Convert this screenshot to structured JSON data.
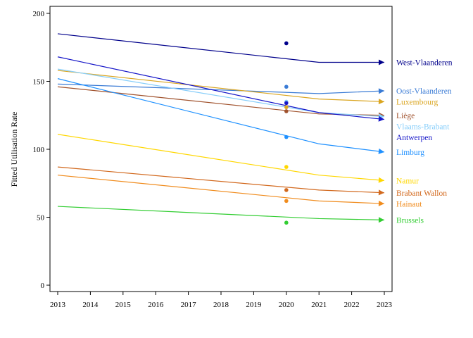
{
  "chart_data": {
    "type": "line",
    "title": "",
    "xlabel": "",
    "ylabel": "Fitted Utilisation Rate",
    "xlim": [
      2013,
      2023
    ],
    "ylim": [
      0,
      200
    ],
    "x_ticks": [
      2013,
      2014,
      2015,
      2016,
      2017,
      2018,
      2019,
      2020,
      2021,
      2022,
      2023
    ],
    "y_ticks": [
      0,
      50,
      100,
      150,
      200
    ],
    "grid": false,
    "legend": "end-of-line labels at right",
    "series": [
      {
        "name": "West-Vlaanderen",
        "color": "#00008B",
        "x": [
          2013,
          2021,
          2023
        ],
        "y": [
          185,
          164,
          164
        ],
        "observed": {
          "x": 2020,
          "y": 178
        }
      },
      {
        "name": "Oost-Vlaanderen",
        "color": "#3A7BD5",
        "x": [
          2013,
          2021,
          2023
        ],
        "y": [
          148,
          141,
          143
        ],
        "observed": {
          "x": 2020,
          "y": 146
        }
      },
      {
        "name": "Luxembourg",
        "color": "#DAA520",
        "x": [
          2013,
          2021,
          2023
        ],
        "y": [
          158,
          137,
          135
        ],
        "observed": {
          "x": 2020,
          "y": 131
        }
      },
      {
        "name": "Liège",
        "color": "#A0522D",
        "x": [
          2013,
          2021,
          2023
        ],
        "y": [
          146,
          126,
          125
        ],
        "observed": {
          "x": 2020,
          "y": 128
        }
      },
      {
        "name": "Vlaams-Brabant",
        "color": "#87CEFA",
        "x": [
          2013,
          2021,
          2023
        ],
        "y": [
          159,
          127,
          124
        ],
        "observed": {
          "x": 2020,
          "y": 135
        }
      },
      {
        "name": "Antwerpen",
        "color": "#1515C8",
        "x": [
          2013,
          2021,
          2023
        ],
        "y": [
          168,
          127,
          122
        ],
        "observed": {
          "x": 2020,
          "y": 134
        }
      },
      {
        "name": "Limburg",
        "color": "#1E90FF",
        "x": [
          2013,
          2021,
          2023
        ],
        "y": [
          152,
          104,
          98
        ],
        "observed": {
          "x": 2020,
          "y": 109
        }
      },
      {
        "name": "Namur",
        "color": "#FFD700",
        "x": [
          2013,
          2021,
          2023
        ],
        "y": [
          111,
          81,
          77
        ],
        "observed": {
          "x": 2020,
          "y": 87
        }
      },
      {
        "name": "Brabant Wallon",
        "color": "#D2691E",
        "x": [
          2013,
          2021,
          2023
        ],
        "y": [
          87,
          70,
          68
        ],
        "observed": {
          "x": 2020,
          "y": 70
        }
      },
      {
        "name": "Hainaut",
        "color": "#F08C1E",
        "x": [
          2013,
          2021,
          2023
        ],
        "y": [
          81,
          62,
          60
        ],
        "observed": {
          "x": 2020,
          "y": 62
        }
      },
      {
        "name": "Brussels",
        "color": "#32CD32",
        "x": [
          2013,
          2021,
          2023
        ],
        "y": [
          58,
          49,
          48
        ],
        "observed": {
          "x": 2020,
          "y": 46
        }
      }
    ]
  }
}
